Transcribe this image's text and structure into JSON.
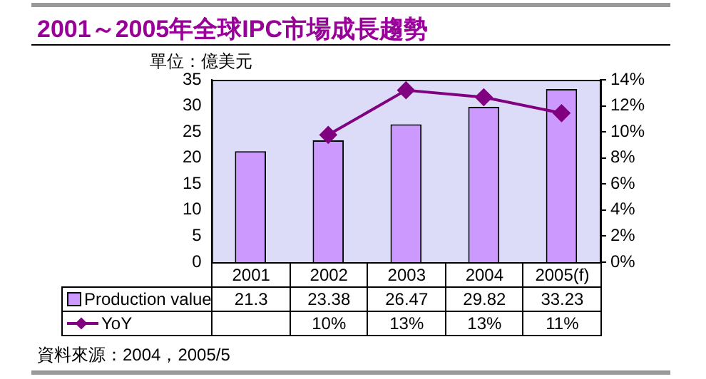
{
  "chart_data": {
    "type": "bar",
    "title": "2001～2005年全球IPC市場成長趨勢",
    "ylabel": "單位：億美元",
    "categories": [
      "2001",
      "2002",
      "2003",
      "2004",
      "2005(f)"
    ],
    "series": [
      {
        "name": "Production value",
        "color": "#cc99ff",
        "values": [
          21.3,
          23.38,
          26.47,
          29.82,
          33.23
        ],
        "value_labels": [
          "21.3",
          "23.38",
          "26.47",
          "29.82",
          "33.23"
        ]
      },
      {
        "name": "YoY",
        "type": "line",
        "axis": "y2",
        "color": "#800080",
        "marker": "diamond",
        "values": [
          null,
          9.77,
          13.2,
          12.66,
          11.44
        ],
        "value_labels": [
          null,
          "10%",
          "13%",
          "13%",
          "11%"
        ]
      }
    ],
    "ylim": [
      0,
      35
    ],
    "yticks": [
      0,
      5,
      10,
      15,
      20,
      25,
      30,
      35
    ],
    "y2lim": [
      0,
      14
    ],
    "y2ticks": [
      {
        "value": 0,
        "label": "0%"
      },
      {
        "value": 2,
        "label": "2%"
      },
      {
        "value": 4,
        "label": "4%"
      },
      {
        "value": 6,
        "label": "6%"
      },
      {
        "value": 8,
        "label": "8%"
      },
      {
        "value": 10,
        "label": "10%"
      },
      {
        "value": 12,
        "label": "12%"
      },
      {
        "value": 14,
        "label": "14%"
      }
    ],
    "grid": false,
    "legend": "bottom",
    "annotations": [
      "資料來源：2004，2005/5"
    ]
  }
}
